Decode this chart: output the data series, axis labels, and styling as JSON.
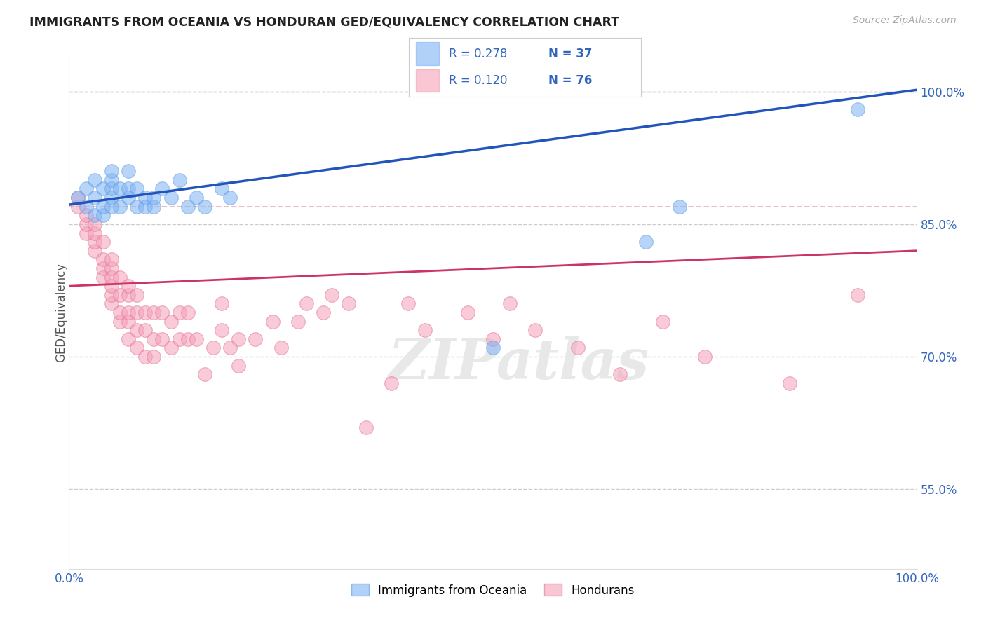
{
  "title": "IMMIGRANTS FROM OCEANIA VS HONDURAN GED/EQUIVALENCY CORRELATION CHART",
  "source_text": "Source: ZipAtlas.com",
  "ylabel": "GED/Equivalency",
  "xlim": [
    0.0,
    1.0
  ],
  "ylim": [
    0.46,
    1.04
  ],
  "yticks": [
    0.55,
    0.7,
    0.85,
    1.0
  ],
  "ytick_labels": [
    "55.0%",
    "70.0%",
    "85.0%",
    "100.0%"
  ],
  "xtick_labels": [
    "0.0%",
    "100.0%"
  ],
  "blue_R": 0.278,
  "blue_N": 37,
  "pink_R": 0.12,
  "pink_N": 76,
  "blue_color": "#7fb3f5",
  "pink_color": "#f5a0b8",
  "blue_edge_color": "#5a9de0",
  "pink_edge_color": "#e07090",
  "blue_label": "Immigrants from Oceania",
  "pink_label": "Hondurans",
  "watermark": "ZIPatlas",
  "blue_scatter_x": [
    0.01,
    0.02,
    0.02,
    0.03,
    0.03,
    0.03,
    0.04,
    0.04,
    0.04,
    0.05,
    0.05,
    0.05,
    0.05,
    0.05,
    0.06,
    0.06,
    0.07,
    0.07,
    0.07,
    0.08,
    0.08,
    0.09,
    0.09,
    0.1,
    0.1,
    0.11,
    0.12,
    0.13,
    0.14,
    0.15,
    0.16,
    0.18,
    0.19,
    0.5,
    0.68,
    0.72,
    0.93
  ],
  "blue_scatter_y": [
    0.88,
    0.87,
    0.89,
    0.86,
    0.88,
    0.9,
    0.86,
    0.87,
    0.89,
    0.87,
    0.88,
    0.89,
    0.9,
    0.91,
    0.87,
    0.89,
    0.88,
    0.89,
    0.91,
    0.87,
    0.89,
    0.87,
    0.88,
    0.87,
    0.88,
    0.89,
    0.88,
    0.9,
    0.87,
    0.88,
    0.87,
    0.89,
    0.88,
    0.71,
    0.83,
    0.87,
    0.98
  ],
  "pink_scatter_x": [
    0.01,
    0.01,
    0.02,
    0.02,
    0.02,
    0.03,
    0.03,
    0.03,
    0.03,
    0.04,
    0.04,
    0.04,
    0.04,
    0.05,
    0.05,
    0.05,
    0.05,
    0.05,
    0.05,
    0.06,
    0.06,
    0.06,
    0.06,
    0.07,
    0.07,
    0.07,
    0.07,
    0.07,
    0.08,
    0.08,
    0.08,
    0.08,
    0.09,
    0.09,
    0.09,
    0.1,
    0.1,
    0.1,
    0.11,
    0.11,
    0.12,
    0.12,
    0.13,
    0.13,
    0.14,
    0.14,
    0.15,
    0.16,
    0.17,
    0.18,
    0.18,
    0.19,
    0.2,
    0.2,
    0.22,
    0.24,
    0.25,
    0.27,
    0.28,
    0.3,
    0.31,
    0.33,
    0.35,
    0.38,
    0.4,
    0.42,
    0.47,
    0.5,
    0.52,
    0.55,
    0.6,
    0.65,
    0.7,
    0.75,
    0.85,
    0.93
  ],
  "pink_scatter_y": [
    0.87,
    0.88,
    0.84,
    0.85,
    0.86,
    0.82,
    0.83,
    0.84,
    0.85,
    0.79,
    0.8,
    0.81,
    0.83,
    0.76,
    0.77,
    0.78,
    0.79,
    0.8,
    0.81,
    0.74,
    0.75,
    0.77,
    0.79,
    0.72,
    0.74,
    0.75,
    0.77,
    0.78,
    0.71,
    0.73,
    0.75,
    0.77,
    0.7,
    0.73,
    0.75,
    0.7,
    0.72,
    0.75,
    0.72,
    0.75,
    0.71,
    0.74,
    0.72,
    0.75,
    0.72,
    0.75,
    0.72,
    0.68,
    0.71,
    0.73,
    0.76,
    0.71,
    0.69,
    0.72,
    0.72,
    0.74,
    0.71,
    0.74,
    0.76,
    0.75,
    0.77,
    0.76,
    0.62,
    0.67,
    0.76,
    0.73,
    0.75,
    0.72,
    0.76,
    0.73,
    0.71,
    0.68,
    0.74,
    0.7,
    0.67,
    0.77
  ],
  "blue_trend_y_start": 0.872,
  "blue_trend_y_end": 1.002,
  "pink_trend_y_start": 0.78,
  "pink_trend_y_end": 0.82,
  "ref_line_y_start": 0.87,
  "ref_line_y_end": 0.87,
  "background_color": "#ffffff",
  "grid_color": "#cccccc",
  "title_color": "#222222",
  "axis_label_color": "#555555",
  "tick_color": "#3366bb",
  "legend_R_color": "#3366bb",
  "legend_box_color": "#dddddd"
}
